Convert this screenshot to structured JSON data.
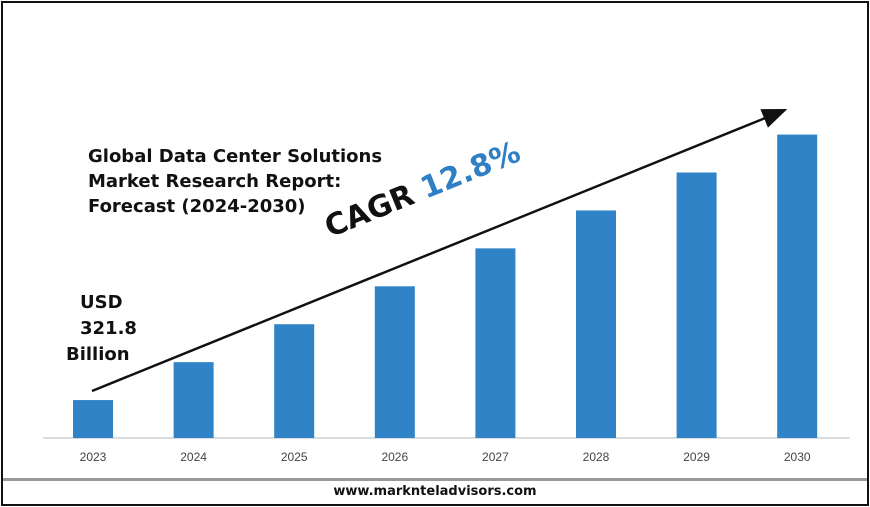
{
  "chart_data": {
    "type": "bar",
    "title": "Global Data Center Solutions Market Research Report: Forecast (2024-2030)",
    "title_lines": [
      "Global Data Center Solutions",
      "Market Research Report:",
      "Forecast (2024-2030)"
    ],
    "categories": [
      "2023",
      "2024",
      "2025",
      "2026",
      "2027",
      "2028",
      "2029",
      "2030"
    ],
    "values": [
      1,
      2,
      3,
      4,
      5,
      6,
      7,
      8
    ],
    "ylim": [
      0,
      8.2
    ],
    "xlabel": "",
    "ylabel": "",
    "grid": false,
    "bar_color": "#2f83c6",
    "annotations": {
      "base_value": {
        "line1": "USD",
        "line2": "321.8",
        "line3": "Billion"
      },
      "cagr_label": "CAGR",
      "cagr_value": "12.8%",
      "cagr_color": "#2f7fc4"
    }
  },
  "footer": {
    "website": "www.marknteladvisors.com"
  }
}
